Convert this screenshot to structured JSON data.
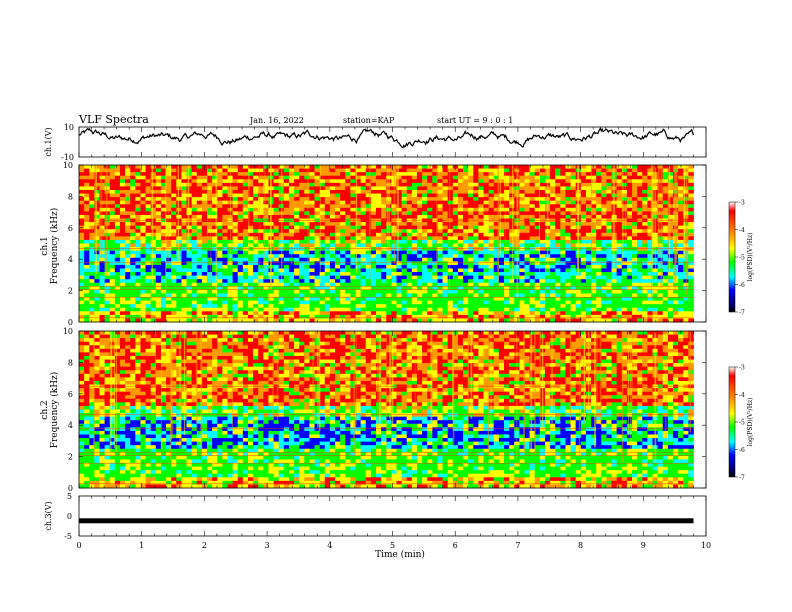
{
  "header": {
    "title": "VLF Spectra",
    "date": "Jan. 16, 2022",
    "station": "station=KAP",
    "start": "start UT =  9 : 0 : 1"
  },
  "panels": {
    "ch1_wave_label": "ch.1(V)",
    "ch1_spec_label_a": "ch.1",
    "ch1_spec_label_b": "Frequency (kHz)",
    "ch2_spec_label_a": "ch.2",
    "ch2_spec_label_b": "Frequency (kHz)",
    "ch3_label": "ch.3(V)"
  },
  "colorbar": {
    "label": "log(PSD)(V²/Hz)",
    "ticks": [
      "-3",
      "-4",
      "-5",
      "-6",
      "-7"
    ],
    "colors": [
      "#ff0000",
      "#ff9900",
      "#ffff00",
      "#00ff00",
      "#00ffff",
      "#0000ff",
      "#000080",
      "#000000"
    ]
  },
  "chart_data": [
    {
      "type": "line",
      "name": "ch.1 waveform",
      "ylabel": "ch.1(V)",
      "ylim": [
        -10,
        10
      ],
      "yticks": [
        "10",
        "-10"
      ],
      "xlim": [
        0,
        10
      ]
    },
    {
      "type": "heatmap",
      "name": "ch.1 spectrogram",
      "xlabel": "Time (min)",
      "ylabel": "Frequency (kHz)",
      "xlim": [
        0,
        10
      ],
      "ylim": [
        0,
        10
      ],
      "yticks": [
        "0",
        "2",
        "4",
        "6",
        "8",
        "10"
      ],
      "z_range": [
        -7,
        -3
      ],
      "data_end_min": 9.8
    },
    {
      "type": "heatmap",
      "name": "ch.2 spectrogram",
      "xlabel": "Time (min)",
      "ylabel": "Frequency (kHz)",
      "xlim": [
        0,
        10
      ],
      "ylim": [
        0,
        10
      ],
      "yticks": [
        "0",
        "2",
        "4",
        "6",
        "8",
        "10"
      ],
      "z_range": [
        -7,
        -3
      ],
      "data_end_min": 9.8
    },
    {
      "type": "line",
      "name": "ch.3 waveform",
      "ylabel": "ch.3(V)",
      "ylim": [
        -5,
        5
      ],
      "yticks": [
        "5",
        "0",
        "-5"
      ],
      "xlim": [
        0,
        10
      ],
      "xlabel": "Time (min)",
      "xticks": [
        "0",
        "1",
        "2",
        "3",
        "4",
        "5",
        "6",
        "7",
        "8",
        "9",
        "10"
      ],
      "level_v": -1.2
    }
  ]
}
